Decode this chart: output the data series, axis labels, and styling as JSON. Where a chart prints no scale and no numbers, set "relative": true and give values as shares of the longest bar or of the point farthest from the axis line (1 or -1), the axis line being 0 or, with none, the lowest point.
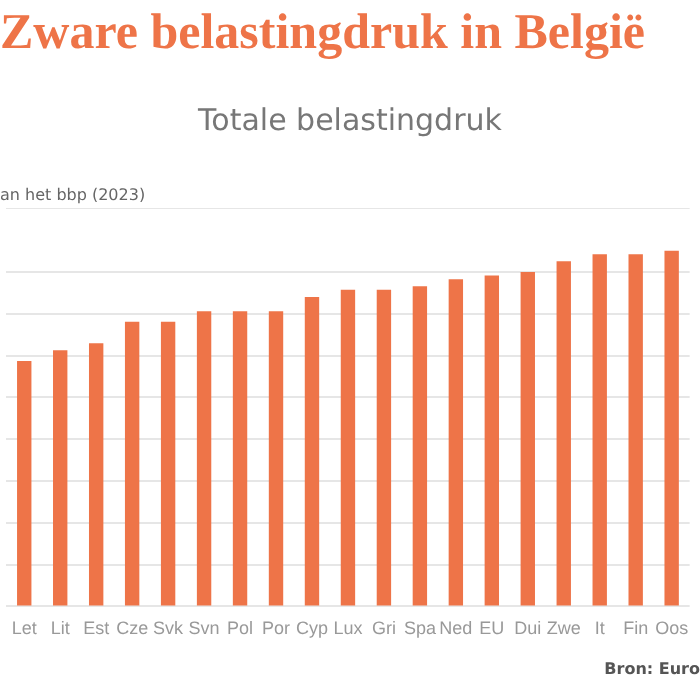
{
  "chart_data": {
    "type": "bar",
    "title": "Zware belastingdruk in België",
    "subtitle": "Totale belastingdruk",
    "ylabel": "an het bbp (2023)",
    "annotations": [
      "Bron: Euro"
    ],
    "categories": [
      "Let",
      "Lit",
      "Est",
      "Cze",
      "Svk",
      "Svn",
      "Pol",
      "Por",
      "Cyp",
      "Lux",
      "Gri",
      "Spa",
      "Ned",
      "EU",
      "Dui",
      "Zwe",
      "It",
      "Fin",
      "Oos"
    ],
    "values": [
      0.69,
      0.72,
      0.74,
      0.8,
      0.8,
      0.83,
      0.83,
      0.83,
      0.87,
      0.89,
      0.89,
      0.9,
      0.92,
      0.93,
      0.94,
      0.97,
      0.99,
      0.99,
      1
    ],
    "color": "#ee7448",
    "relative": true,
    "grid": "y",
    "legend": false
  }
}
